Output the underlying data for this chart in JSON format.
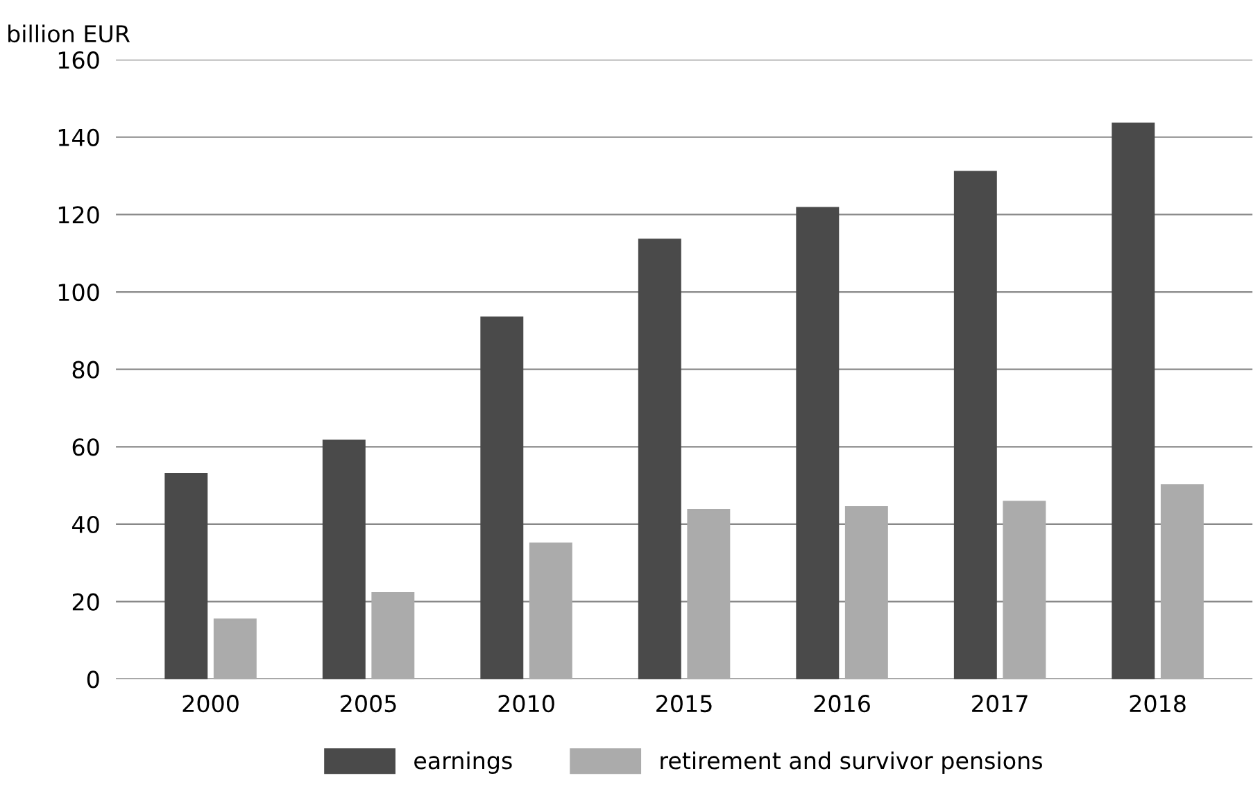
{
  "chart_data": {
    "type": "bar",
    "ylabel": "billion EUR",
    "categories": [
      "2000",
      "2005",
      "2010",
      "2015",
      "2016",
      "2017",
      "2018"
    ],
    "series": [
      {
        "name": "earnings",
        "color": "#4a4a4a",
        "values": [
          53,
          61.6,
          93.4,
          113.5,
          121.7,
          131,
          143.5
        ]
      },
      {
        "name": "retirement and survivor pensions",
        "color": "#ababab",
        "values": [
          15.4,
          22.2,
          35,
          43.7,
          44.4,
          45.8,
          50.1
        ]
      }
    ],
    "ylim": [
      0,
      160
    ],
    "yticks": [
      0,
      20,
      40,
      60,
      80,
      100,
      120,
      140,
      160
    ],
    "grid": "y",
    "legend": "bottom"
  }
}
